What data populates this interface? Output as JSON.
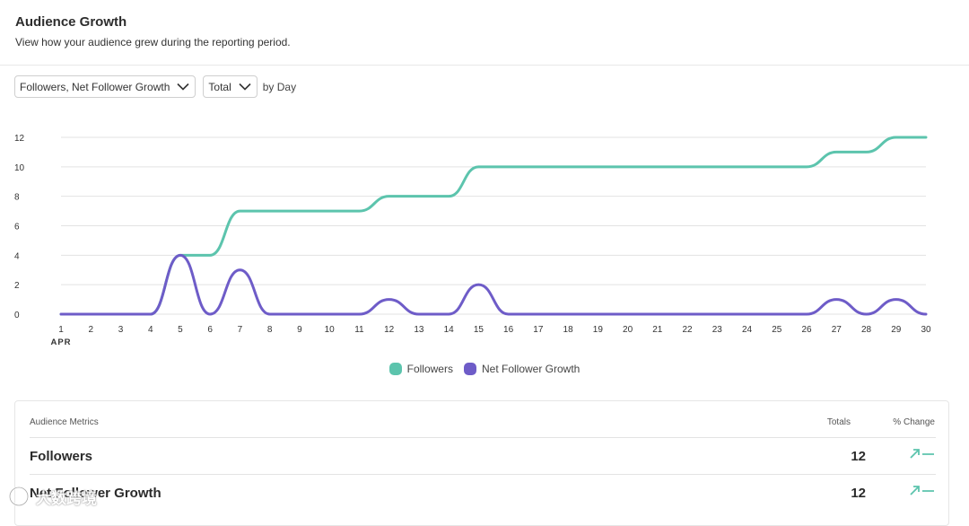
{
  "header": {
    "title": "Audience Growth",
    "subtitle": "View how your audience grew during the reporting period."
  },
  "controls": {
    "metric_select": "Followers, Net Follower Growth",
    "mode_select": "Total",
    "granularity": "by Day"
  },
  "chart_data": {
    "type": "line",
    "x": [
      1,
      2,
      3,
      4,
      5,
      6,
      7,
      8,
      9,
      10,
      11,
      12,
      13,
      14,
      15,
      16,
      17,
      18,
      19,
      20,
      21,
      22,
      23,
      24,
      25,
      26,
      27,
      28,
      29,
      30
    ],
    "x_month_label": "APR",
    "ylim": [
      0,
      12
    ],
    "yticks": [
      0,
      2,
      4,
      6,
      8,
      10,
      12
    ],
    "grid": true,
    "legend_position": "bottom-center",
    "series": [
      {
        "name": "Followers",
        "color": "#5cc4ad",
        "values": [
          0,
          0,
          0,
          0,
          4,
          4,
          7,
          7,
          7,
          7,
          7,
          8,
          8,
          8,
          10,
          10,
          10,
          10,
          10,
          10,
          10,
          10,
          10,
          10,
          10,
          10,
          11,
          11,
          12,
          12
        ]
      },
      {
        "name": "Net Follower Growth",
        "color": "#6e5cc8",
        "values": [
          0,
          0,
          0,
          0,
          4,
          0,
          3,
          0,
          0,
          0,
          0,
          1,
          0,
          0,
          2,
          0,
          0,
          0,
          0,
          0,
          0,
          0,
          0,
          0,
          0,
          0,
          1,
          0,
          1,
          0
        ]
      }
    ]
  },
  "metrics": {
    "header_label": "Audience Metrics",
    "header_totals": "Totals",
    "header_change": "% Change",
    "rows": [
      {
        "name": "Followers",
        "total": "12",
        "change_icon": "trend-up-icon"
      },
      {
        "name": "Net Follower Growth",
        "total": "12",
        "change_icon": "trend-up-icon"
      }
    ]
  },
  "watermark": {
    "text": "大数跨境"
  }
}
